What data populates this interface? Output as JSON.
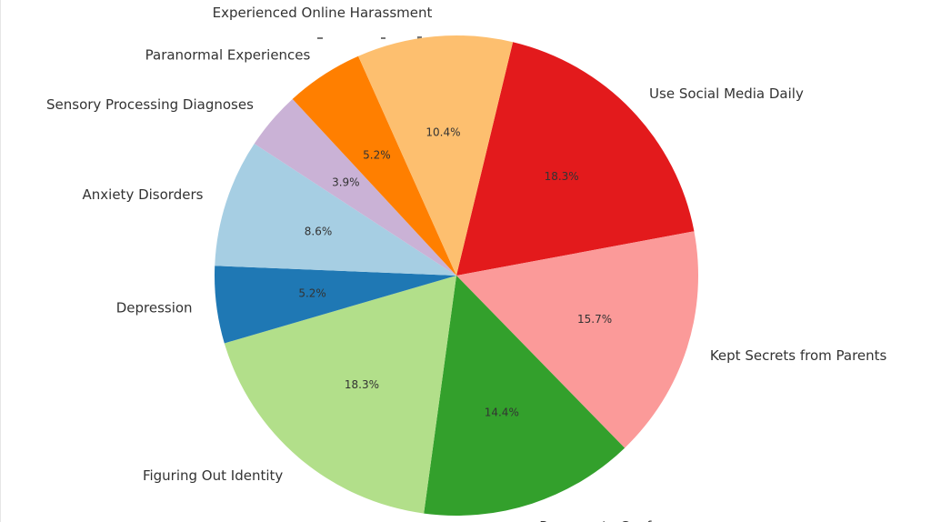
{
  "chart_data": {
    "type": "pie",
    "title": "",
    "slices": [
      {
        "label": "Use Social Media Daily",
        "pct_label": "18.3%",
        "value": 18.3,
        "color": "#e31a1c"
      },
      {
        "label": "Kept Secrets from Parents",
        "pct_label": "15.7%",
        "value": 15.7,
        "color": "#fb9a99"
      },
      {
        "label": "Pressure to Conform",
        "pct_label": "14.4%",
        "value": 14.4,
        "color": "#33a02c"
      },
      {
        "label": "Figuring Out Identity",
        "pct_label": "18.3%",
        "value": 18.3,
        "color": "#b2df8a"
      },
      {
        "label": "Depression",
        "pct_label": "5.2%",
        "value": 5.2,
        "color": "#1f78b4"
      },
      {
        "label": "Anxiety Disorders",
        "pct_label": "8.6%",
        "value": 8.6,
        "color": "#a6cee3"
      },
      {
        "label": "Sensory Processing Diagnoses",
        "pct_label": "3.9%",
        "value": 3.9,
        "color": "#cab2d6"
      },
      {
        "label": "Paranormal Experiences",
        "pct_label": "5.2%",
        "value": 5.2,
        "color": "#ff7f00"
      },
      {
        "label": "Experienced Online Harassment",
        "pct_label": "10.4%",
        "value": 10.4,
        "color": "#fdbf6f"
      }
    ]
  }
}
